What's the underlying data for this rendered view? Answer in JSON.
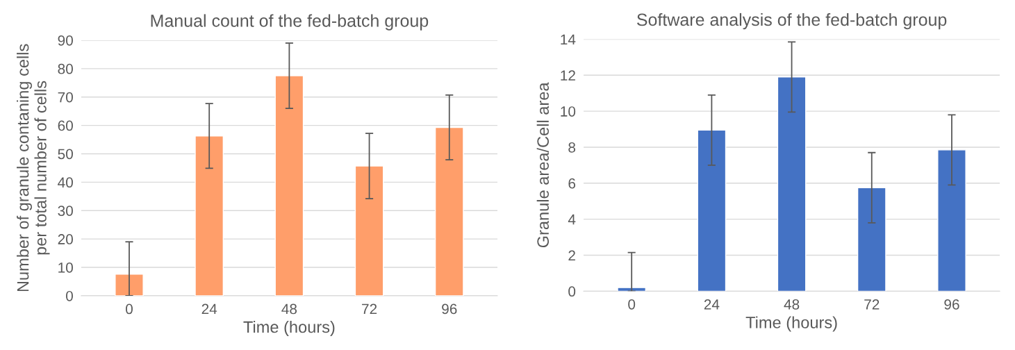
{
  "chart_data": [
    {
      "type": "bar",
      "title": "Manual count of the fed-batch group",
      "xlabel": "Time (hours)",
      "ylabel": "Number of granule contaning cells\nper total number of cells",
      "categories": [
        "0",
        "24",
        "48",
        "72",
        "96"
      ],
      "values": [
        7.6,
        56.3,
        77.5,
        45.7,
        59.3
      ],
      "errors": [
        [
          0,
          19
        ],
        11.4,
        11.5,
        11.5,
        11.4
      ],
      "color": "#ff9e6a",
      "ylim": [
        0,
        90
      ],
      "yticks": [
        0,
        10,
        20,
        30,
        40,
        50,
        60,
        70,
        80,
        90
      ],
      "grid": "y"
    },
    {
      "type": "bar",
      "title": "Software analysis of the fed-batch group",
      "xlabel": "Time (hours)",
      "ylabel": "Granule area/Cell area",
      "categories": [
        "0",
        "24",
        "48",
        "72",
        "96"
      ],
      "values": [
        0.2,
        8.95,
        11.9,
        5.75,
        7.85
      ],
      "errors": [
        [
          0,
          2.15
        ],
        1.95,
        1.95,
        1.95,
        1.95
      ],
      "color": "#4472c4",
      "ylim": [
        0,
        14
      ],
      "yticks": [
        0,
        2,
        4,
        6,
        8,
        10,
        12,
        14
      ],
      "grid": "y"
    }
  ]
}
